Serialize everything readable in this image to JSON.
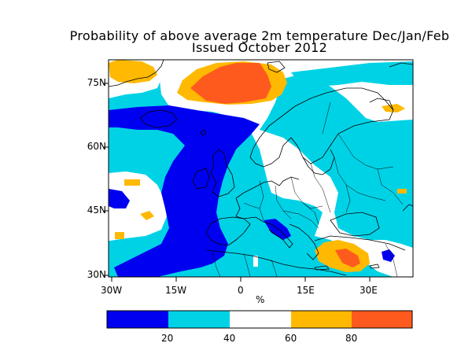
{
  "title_line1": "Probability of above average 2m temperature Dec/Jan/Feb",
  "title_line2": "Issued October 2012",
  "x_ticks": [
    "30W",
    "15W",
    "0",
    "15E",
    "30E"
  ],
  "y_ticks": [
    "75N",
    "60N",
    "45N",
    "30N"
  ],
  "units_label": "%",
  "colorbar": {
    "tick_labels": [
      "20",
      "40",
      "60",
      "80"
    ],
    "bins": [
      {
        "range": "0-20",
        "color": "#0000f0"
      },
      {
        "range": "20-40",
        "color": "#00d2e6"
      },
      {
        "range": "40-60",
        "color": "#ffffff"
      },
      {
        "range": "60-80",
        "color": "#ffb900"
      },
      {
        "range": "80-100",
        "color": "#ff5a1e"
      }
    ]
  },
  "colors": {
    "deep_blue": "#0000f0",
    "cyan": "#00d2e6",
    "orange": "#ffb900",
    "red_orange": "#ff5a1e",
    "coastline": "#000000"
  }
}
